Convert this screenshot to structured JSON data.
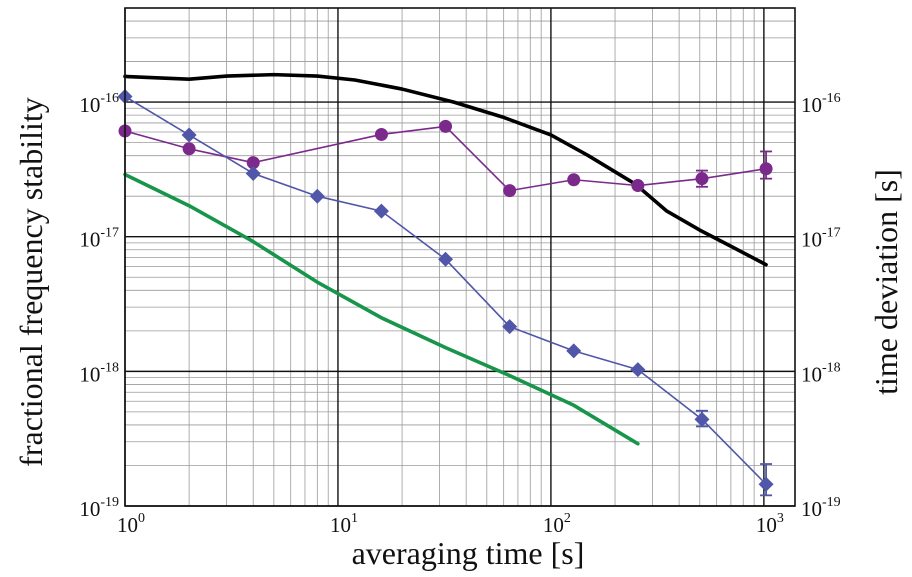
{
  "chart_data": {
    "type": "scatter",
    "title": "",
    "xlabel": "averaging time [s]",
    "ylabel": "fractional frequency stability",
    "y2label": "time deviation [s]",
    "x_scale": "log",
    "y_scale": "log",
    "xlim": [
      1,
      1400
    ],
    "ylim": [
      1e-19,
      5e-16
    ],
    "grid": true,
    "x_ticks": [
      {
        "value": 1,
        "base": "10",
        "exp": "0"
      },
      {
        "value": 10,
        "base": "10",
        "exp": "1"
      },
      {
        "value": 100,
        "base": "10",
        "exp": "2"
      },
      {
        "value": 1000,
        "base": "10",
        "exp": "3"
      }
    ],
    "y_ticks": [
      {
        "value": 1e-16,
        "base": "10",
        "exp": "-16"
      },
      {
        "value": 1e-17,
        "base": "10",
        "exp": "-17"
      },
      {
        "value": 1e-18,
        "base": "10",
        "exp": "-18"
      },
      {
        "value": 1e-19,
        "base": "10",
        "exp": "-19"
      }
    ],
    "y2_ticks": [
      {
        "value": 1e-16,
        "base": "10",
        "exp": "-16"
      },
      {
        "value": 1e-17,
        "base": "10",
        "exp": "-17"
      },
      {
        "value": 1e-18,
        "base": "10",
        "exp": "-18"
      },
      {
        "value": 1e-19,
        "base": "10",
        "exp": "-19"
      }
    ],
    "series": [
      {
        "color": "#000000",
        "style": "line",
        "x": [
          1,
          2,
          3,
          5,
          8,
          12,
          20,
          35,
          60,
          100,
          150,
          250,
          350,
          500,
          700,
          1024
        ],
        "y": [
          1.55e-16,
          1.48e-16,
          1.56e-16,
          1.6e-16,
          1.56e-16,
          1.46e-16,
          1.25e-16,
          1e-16,
          7.7e-17,
          5.7e-17,
          4e-17,
          2.45e-17,
          1.55e-17,
          1.12e-17,
          8.5e-18,
          6.2e-18
        ]
      },
      {
        "color": "#17954a",
        "style": "line",
        "x": [
          1,
          2,
          4,
          8,
          16,
          32,
          64,
          128,
          256
        ],
        "y": [
          2.9e-17,
          1.7e-17,
          9.2e-18,
          4.6e-18,
          2.5e-18,
          1.5e-18,
          9.3e-19,
          5.6e-19,
          2.9e-19
        ]
      },
      {
        "color": "#7b2a8c",
        "style": "line-marker",
        "marker": "circle",
        "x": [
          1,
          2,
          4,
          16,
          32,
          64,
          128,
          256,
          512,
          1024
        ],
        "y": [
          6.1e-17,
          4.5e-17,
          3.55e-17,
          5.75e-17,
          6.6e-17,
          2.2e-17,
          2.65e-17,
          2.4e-17,
          2.7e-17,
          3.2e-17
        ],
        "err_low": [
          null,
          null,
          null,
          null,
          null,
          null,
          null,
          null,
          2.35e-17,
          2.7e-17
        ],
        "err_high": [
          null,
          null,
          null,
          null,
          null,
          null,
          null,
          null,
          3.1e-17,
          4.3e-17
        ]
      },
      {
        "color": "#5056a8",
        "style": "line-marker",
        "marker": "diamond",
        "x": [
          1,
          2,
          4,
          8,
          16,
          32,
          64,
          128,
          256,
          512,
          1024
        ],
        "y": [
          1.1e-16,
          5.7e-17,
          2.95e-17,
          2e-17,
          1.55e-17,
          6.8e-18,
          2.15e-18,
          1.42e-18,
          1.03e-18,
          4.4e-19,
          1.45e-19
        ],
        "err_low": [
          null,
          null,
          null,
          null,
          null,
          null,
          null,
          null,
          null,
          3.9e-19,
          1.2e-19
        ],
        "err_high": [
          null,
          null,
          null,
          null,
          null,
          null,
          null,
          null,
          null,
          5.1e-19,
          2.05e-19
        ]
      }
    ]
  }
}
